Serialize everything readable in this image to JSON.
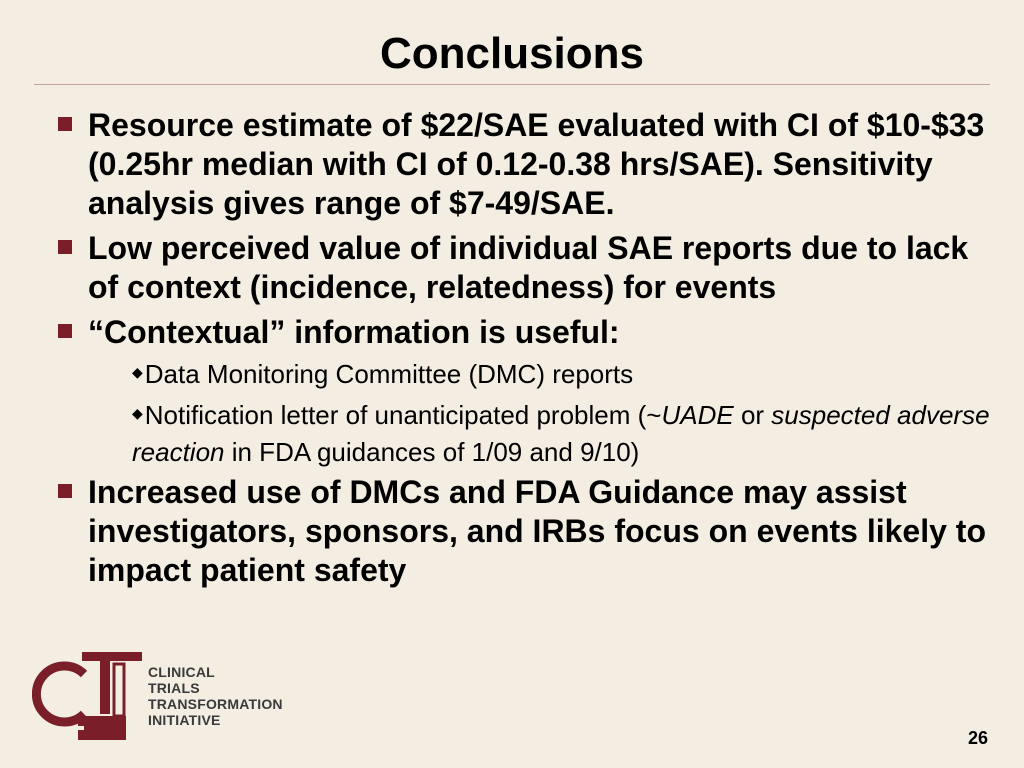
{
  "title": "Conclusions",
  "bullets": [
    {
      "text": "Resource estimate of $22/SAE evaluated with CI of $10-$33 (0.25hr median with CI of 0.12-0.38 hrs/SAE). Sensitivity analysis gives range of $7-49/SAE."
    },
    {
      "text": "Low perceived value of individual SAE reports due to lack of context (incidence, relatedness) for events"
    },
    {
      "text": "“Contextual” information is useful:"
    },
    {
      "text": "Increased use of DMCs and FDA Guidance may assist investigators, sponsors, and IRBs focus on events likely to impact patient safety"
    }
  ],
  "sub_bullets": [
    {
      "text": "Data Monitoring Committee (DMC) reports"
    },
    {
      "prefix": "Notification letter of unanticipated problem (~",
      "italic1": "UADE",
      "middle": " or ",
      "italic2": "suspected adverse reaction",
      "suffix": " in FDA guidances of 1/09 and 9/10)"
    }
  ],
  "logo": {
    "letters": "CTI",
    "lines": [
      "CLINICAL",
      "TRIALS",
      "TRANSFORMATION",
      "INITIATIVE"
    ],
    "colors": {
      "maroon": "#7a1e2a",
      "gray": "#3a3a3a"
    }
  },
  "page_number": "26",
  "colors": {
    "background": "#f3ede2",
    "bullet": "#7a1e2a",
    "rule": "#c9a0a0"
  }
}
